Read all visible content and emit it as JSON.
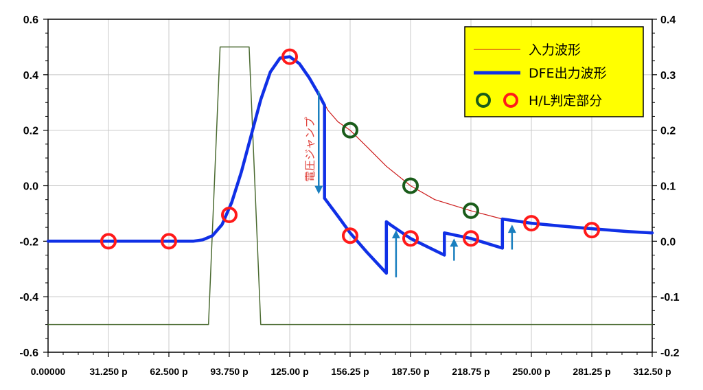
{
  "chart_data": {
    "type": "line",
    "x_ticks": [
      "0.00000",
      "31.250 p",
      "62.500 p",
      "93.750 p",
      "125.00 p",
      "156.25 p",
      "187.50 p",
      "218.75 p",
      "250.00 p",
      "281.25 p",
      "312.50 p"
    ],
    "x_range": [
      0,
      312.5
    ],
    "x_unit": "p",
    "y_left_ticks": [
      "0.6",
      "0.4",
      "0.2",
      "0.0",
      "-0.2",
      "-0.4",
      "-0.6"
    ],
    "y_left_range": [
      -0.6,
      0.6
    ],
    "y_right_ticks": [
      "0.4",
      "0.3",
      "0.2",
      "0.1",
      "0.0",
      "-0.1",
      "-0.2"
    ],
    "y_right_range": [
      -0.2,
      0.4
    ],
    "grid": true,
    "legend_placement": "top-right",
    "legend": {
      "input": "入力波形",
      "dfe": "DFE出力波形",
      "judge": "H/L判定部分"
    },
    "annotation": "電圧ジャンプ",
    "colors": {
      "input": "#cc1a1a",
      "dfe": "#1030e6",
      "pulse": "#4a6a30",
      "circle_red": "#ff1a1a",
      "circle_green": "#1a5c1a",
      "arrow": "#1a7fbf",
      "legend_bg": "#ffff00"
    },
    "series": [
      {
        "name": "入力波形",
        "axis": "left",
        "x": [
          0,
          75,
          80,
          85,
          90,
          95,
          100,
          105,
          110,
          115,
          120,
          125,
          130,
          135,
          140,
          145,
          150,
          156.25,
          165,
          175,
          187.5,
          200,
          218.75,
          235,
          250,
          265,
          281.25,
          300,
          312.5
        ],
        "y": [
          -0.2,
          -0.2,
          -0.195,
          -0.18,
          -0.14,
          -0.06,
          0.05,
          0.18,
          0.31,
          0.41,
          0.46,
          0.465,
          0.44,
          0.39,
          0.33,
          0.27,
          0.23,
          0.2,
          0.14,
          0.07,
          0.0,
          -0.05,
          -0.09,
          -0.12,
          -0.135,
          -0.145,
          -0.155,
          -0.165,
          -0.17
        ]
      },
      {
        "name": "DFE出力波形",
        "axis": "left",
        "x": [
          0,
          75,
          80,
          85,
          90,
          95,
          100,
          105,
          110,
          115,
          120,
          125,
          130,
          135,
          140,
          143,
          143,
          150,
          156.25,
          165,
          175,
          175,
          177,
          187.5,
          205,
          205,
          218.75,
          235,
          235,
          250,
          265,
          281.25,
          300,
          312.5
        ],
        "y": [
          -0.2,
          -0.2,
          -0.195,
          -0.18,
          -0.14,
          -0.06,
          0.05,
          0.18,
          0.31,
          0.41,
          0.46,
          0.465,
          0.44,
          0.39,
          0.33,
          0.29,
          -0.045,
          -0.11,
          -0.17,
          -0.24,
          -0.315,
          -0.13,
          -0.14,
          -0.19,
          -0.25,
          -0.17,
          -0.19,
          -0.225,
          -0.12,
          -0.135,
          -0.145,
          -0.155,
          -0.165,
          -0.17
        ]
      },
      {
        "name": "",
        "axis": "right",
        "x": [
          0,
          83,
          89,
          104,
          110,
          312.5
        ],
        "y": [
          -0.15,
          -0.15,
          0.35,
          0.35,
          -0.15,
          -0.15
        ]
      }
    ],
    "judge_points_red": [
      {
        "x": 31.25,
        "y": -0.2
      },
      {
        "x": 62.5,
        "y": -0.2
      },
      {
        "x": 93.75,
        "y": -0.105
      },
      {
        "x": 125,
        "y": 0.465
      },
      {
        "x": 156.25,
        "y": -0.18
      },
      {
        "x": 187.5,
        "y": -0.19
      },
      {
        "x": 218.75,
        "y": -0.19
      },
      {
        "x": 250,
        "y": -0.135
      },
      {
        "x": 281.25,
        "y": -0.16
      }
    ],
    "judge_points_green": [
      {
        "x": 156.25,
        "y": 0.2
      },
      {
        "x": 187.5,
        "y": 0.0
      },
      {
        "x": 218.75,
        "y": -0.09
      }
    ],
    "jump_arrows": [
      {
        "x": 140,
        "y_from": 0.34,
        "y_to": -0.03
      },
      {
        "x": 180,
        "y_from": -0.33,
        "y_to": -0.16
      },
      {
        "x": 210,
        "y_from": -0.27,
        "y_to": -0.19
      },
      {
        "x": 240,
        "y_from": -0.23,
        "y_to": -0.14
      }
    ]
  }
}
